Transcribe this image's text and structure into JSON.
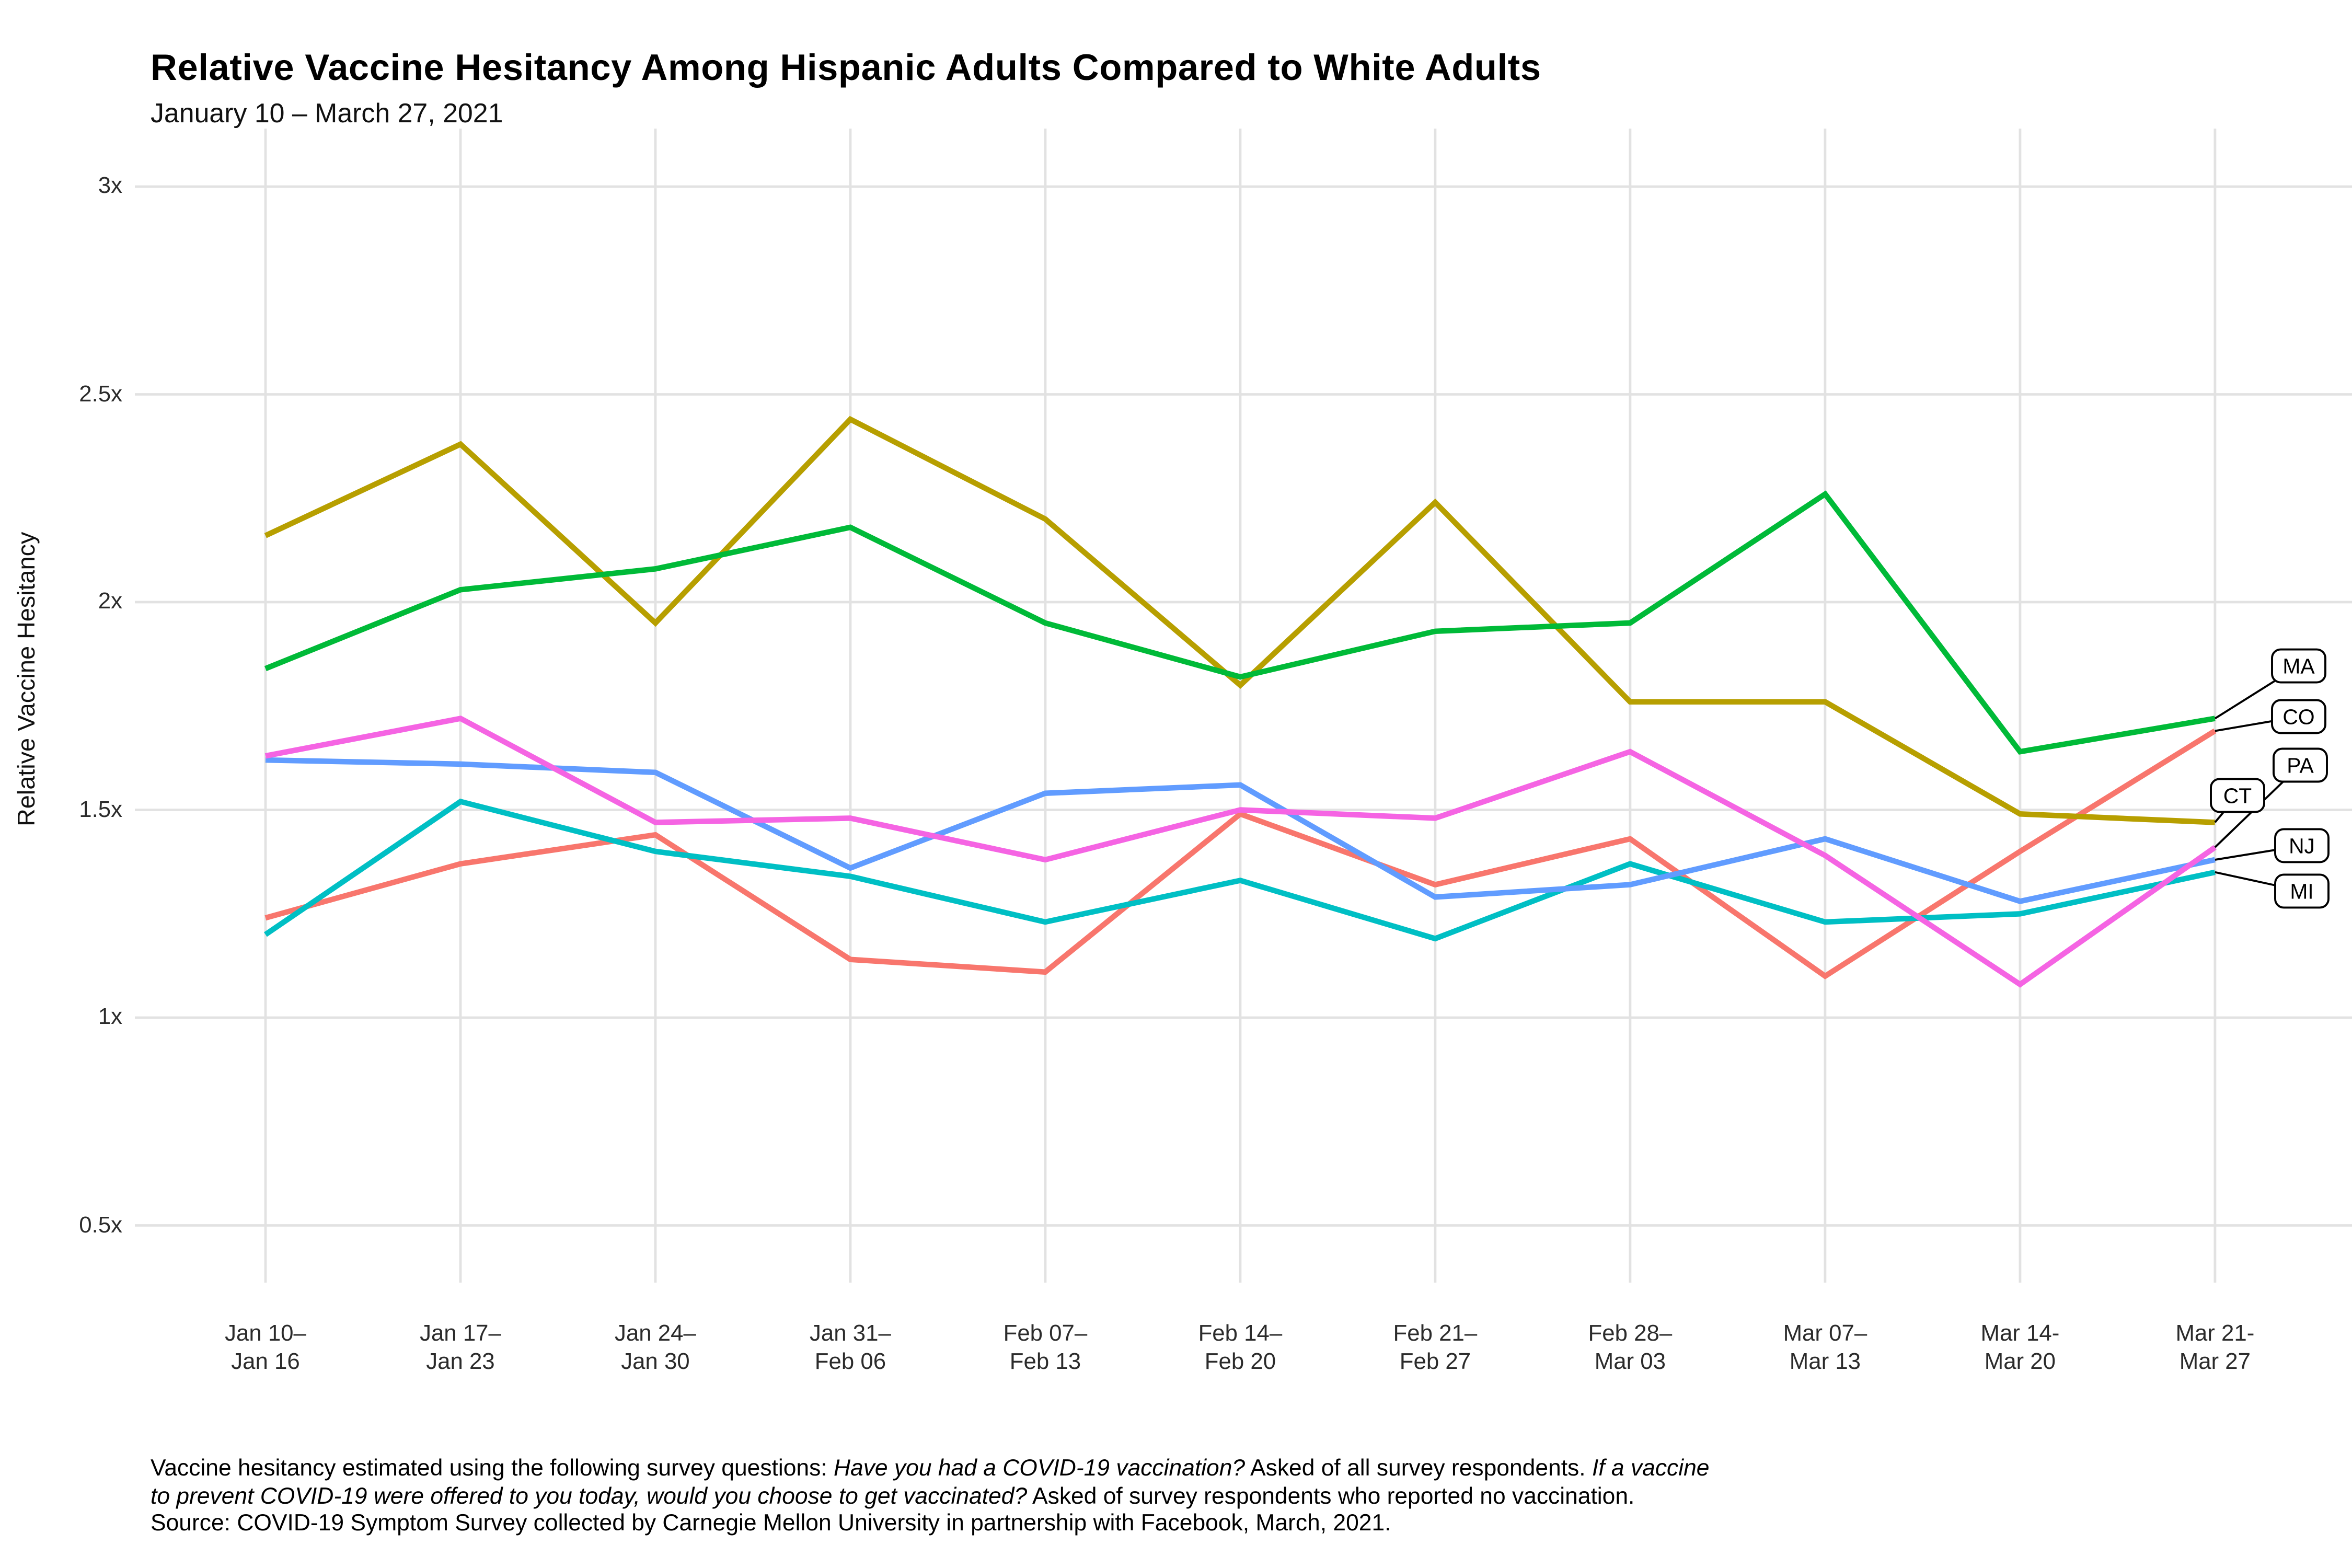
{
  "header": {
    "title": "Relative Vaccine Hesitancy Among Hispanic Adults Compared to White Adults",
    "subtitle": "January 10 – March 27, 2021"
  },
  "chart_data": {
    "type": "line",
    "title": "Relative Vaccine Hesitancy Among Hispanic Adults Compared to White Adults",
    "subtitle": "January 10 – March 27, 2021",
    "ylabel": "Relative Vaccine Hesitancy",
    "xlabel": "",
    "ylim": [
      0.35,
      3.15
    ],
    "grid": "major-both-light-gray-on-white",
    "legend_position": "right-end-labels-in-rounded-boxes",
    "y_ticks": [
      {
        "value": 3,
        "label": "3x"
      },
      {
        "value": 2.5,
        "label": "2.5x"
      },
      {
        "value": 2,
        "label": "2x"
      },
      {
        "value": 1.5,
        "label": "1.5x"
      },
      {
        "value": 1,
        "label": "1x"
      },
      {
        "value": 0.5,
        "label": "0.5x"
      }
    ],
    "categories": [
      {
        "line1": "Jan 10–",
        "line2": "Jan 16"
      },
      {
        "line1": "Jan 17–",
        "line2": "Jan 23"
      },
      {
        "line1": "Jan 24–",
        "line2": "Jan 30"
      },
      {
        "line1": "Jan 31–",
        "line2": "Feb 06"
      },
      {
        "line1": "Feb 07–",
        "line2": "Feb 13"
      },
      {
        "line1": "Feb 14–",
        "line2": "Feb 20"
      },
      {
        "line1": "Feb 21–",
        "line2": "Feb 27"
      },
      {
        "line1": "Feb 28–",
        "line2": "Mar 03"
      },
      {
        "line1": "Mar 07–",
        "line2": "Mar 13"
      },
      {
        "line1": "Mar 14-",
        "line2": "Mar 20"
      },
      {
        "line1": "Mar 21-",
        "line2": "Mar 27"
      }
    ],
    "series": [
      {
        "name": "CO",
        "color": "#F8766D",
        "values": [
          1.24,
          1.37,
          1.44,
          1.14,
          1.11,
          1.49,
          1.32,
          1.43,
          1.1,
          1.4,
          1.69
        ]
      },
      {
        "name": "CT",
        "color": "#B79F00",
        "values": [
          2.16,
          2.38,
          1.95,
          2.44,
          2.2,
          1.8,
          2.24,
          1.76,
          1.76,
          1.49,
          1.47
        ]
      },
      {
        "name": "MA",
        "color": "#00BA38",
        "values": [
          1.84,
          2.03,
          2.08,
          2.18,
          1.95,
          1.82,
          1.93,
          1.95,
          2.26,
          1.64,
          1.72
        ]
      },
      {
        "name": "MI",
        "color": "#00BFC4",
        "values": [
          1.2,
          1.52,
          1.4,
          1.34,
          1.23,
          1.33,
          1.19,
          1.37,
          1.23,
          1.25,
          1.35
        ]
      },
      {
        "name": "NJ",
        "color": "#619CFF",
        "values": [
          1.62,
          1.61,
          1.59,
          1.36,
          1.54,
          1.56,
          1.29,
          1.32,
          1.43,
          1.28,
          1.38
        ]
      },
      {
        "name": "PA",
        "color": "#F564E3",
        "values": [
          1.63,
          1.72,
          1.47,
          1.48,
          1.38,
          1.5,
          1.48,
          1.64,
          1.39,
          1.08,
          1.41
        ]
      }
    ],
    "end_labels": [
      {
        "series": "MA",
        "text": "MA",
        "cx": 1466,
        "cy": 424.7
      },
      {
        "series": "CO",
        "text": "CO",
        "cx": 1466,
        "cy": 457.0
      },
      {
        "series": "PA",
        "text": "PA",
        "cx": 1467,
        "cy": 488.0
      },
      {
        "series": "CT",
        "text": "CT",
        "cx": 1427,
        "cy": 507.3
      },
      {
        "series": "NJ",
        "text": "NJ",
        "cx": 1468,
        "cy": 539.3
      },
      {
        "series": "MI",
        "text": "MI",
        "cx": 1468,
        "cy": 568.3
      }
    ],
    "colors": {
      "gridline": "#E2E2E2",
      "label_box_border": "#000000",
      "label_box_fill": "#FFFFFF"
    }
  },
  "footer": {
    "lines": [
      [
        {
          "t": "Vaccine hesitancy estimated using the following survey questions: ",
          "i": false
        },
        {
          "t": "Have you had a COVID-19 vaccination?",
          "i": true
        },
        {
          "t": " Asked of all survey respondents. ",
          "i": false
        },
        {
          "t": "If a vaccine",
          "i": true
        }
      ],
      [
        {
          "t": "to prevent COVID-19 were offered to you today, would you choose to get vaccinated?",
          "i": true
        },
        {
          "t": " Asked of survey respondents who reported no vaccination.",
          "i": false
        }
      ],
      [
        {
          "t": "Source: COVID-19 Symptom Survey collected by Carnegie Mellon University in partnership with Facebook, March, 2021.",
          "i": false
        }
      ]
    ]
  }
}
